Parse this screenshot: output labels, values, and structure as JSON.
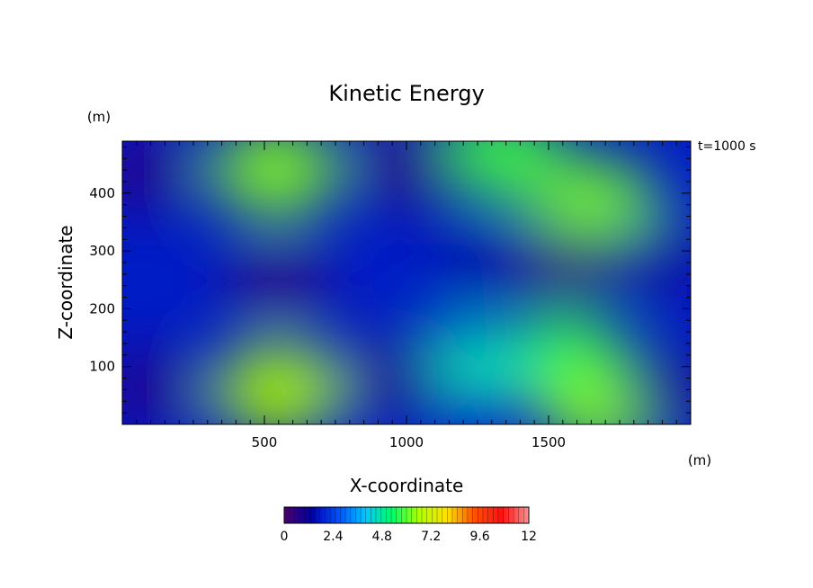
{
  "chart_data": {
    "type": "heatmap",
    "title": "Kinetic Energy",
    "xlabel": "X-coordinate",
    "ylabel": "Z-coordinate",
    "x_unit": "(m)",
    "y_unit": "(m)",
    "time_label": "t=1000 s",
    "xlim": [
      0,
      2000
    ],
    "ylim": [
      0,
      490
    ],
    "x_ticks": [
      500,
      1000,
      1500
    ],
    "y_ticks": [
      100,
      200,
      300,
      400
    ],
    "colorbar": {
      "min": 0,
      "max": 12,
      "tick_values": [
        0,
        2.4,
        4.8,
        7.2,
        9.6,
        12
      ],
      "tick_labels": [
        "0",
        "2.4",
        "4.8",
        "7.2",
        "9.6",
        "12"
      ],
      "colors": [
        "#4b0069",
        "#0000a8",
        "#0050ff",
        "#00c8ff",
        "#00ff60",
        "#b4ff00",
        "#ffe000",
        "#ff5000",
        "#ff1010",
        "#ff9090"
      ]
    },
    "blobs": [
      {
        "x": 540,
        "z": 440,
        "value": 6.3
      },
      {
        "x": 550,
        "z": 60,
        "value": 6.6
      },
      {
        "x": 550,
        "z": 250,
        "value": 0.4
      },
      {
        "x": 1320,
        "z": 470,
        "value": 5.8
      },
      {
        "x": 1660,
        "z": 380,
        "value": 6.2
      },
      {
        "x": 1560,
        "z": 110,
        "value": 5.6
      },
      {
        "x": 1700,
        "z": 30,
        "value": 6.3
      },
      {
        "x": 1220,
        "z": 100,
        "value": 4.6
      },
      {
        "x": 1540,
        "z": 270,
        "value": 0.2
      },
      {
        "x": 1000,
        "z": 450,
        "value": 0.4
      },
      {
        "x": 950,
        "z": 80,
        "value": 0.7
      },
      {
        "x": 80,
        "z": 440,
        "value": 0.5
      },
      {
        "x": 90,
        "z": 60,
        "value": 0.6
      },
      {
        "x": 1900,
        "z": 290,
        "value": 1.0
      },
      {
        "x": 1940,
        "z": 60,
        "value": 0.8
      },
      {
        "x": 1280,
        "z": 290,
        "value": 1.3
      }
    ]
  }
}
